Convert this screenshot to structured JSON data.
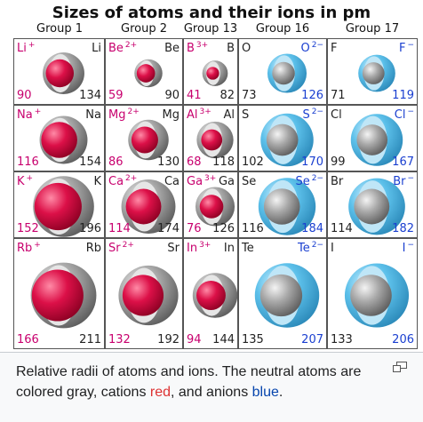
{
  "title": "Sizes of atoms and their ions in pm",
  "groups": [
    "Group 1",
    "Group 2",
    "Group 13",
    "Group 16",
    "Group 17"
  ],
  "colors": {
    "cation": "#d8144a",
    "atom": "#9a9a9a",
    "anion": "#4cb8e6",
    "cation_label": "#c8006e",
    "anion_label": "#1a3fd0"
  },
  "rows": [
    [
      {
        "ion": "Li",
        "charge": "+",
        "atom": "Li",
        "ion_r": 90,
        "atom_r": 134,
        "type": "cation"
      },
      {
        "ion": "Be",
        "charge": "2+",
        "atom": "Be",
        "ion_r": 59,
        "atom_r": 90,
        "type": "cation"
      },
      {
        "ion": "B",
        "charge": "3+",
        "atom": "B",
        "ion_r": 41,
        "atom_r": 82,
        "type": "cation"
      },
      {
        "ion": "O",
        "charge": "2−",
        "atom": "O",
        "ion_r": 126,
        "atom_r": 73,
        "type": "anion"
      },
      {
        "ion": "F",
        "charge": "−",
        "atom": "F",
        "ion_r": 119,
        "atom_r": 71,
        "type": "anion"
      }
    ],
    [
      {
        "ion": "Na",
        "charge": "+",
        "atom": "Na",
        "ion_r": 116,
        "atom_r": 154,
        "type": "cation"
      },
      {
        "ion": "Mg",
        "charge": "2+",
        "atom": "Mg",
        "ion_r": 86,
        "atom_r": 130,
        "type": "cation"
      },
      {
        "ion": "Al",
        "charge": "3+",
        "atom": "Al",
        "ion_r": 68,
        "atom_r": 118,
        "type": "cation"
      },
      {
        "ion": "S",
        "charge": "2−",
        "atom": "S",
        "ion_r": 170,
        "atom_r": 102,
        "type": "anion"
      },
      {
        "ion": "Cl",
        "charge": "−",
        "atom": "Cl",
        "ion_r": 167,
        "atom_r": 99,
        "type": "anion"
      }
    ],
    [
      {
        "ion": "K",
        "charge": "+",
        "atom": "K",
        "ion_r": 152,
        "atom_r": 196,
        "type": "cation"
      },
      {
        "ion": "Ca",
        "charge": "2+",
        "atom": "Ca",
        "ion_r": 114,
        "atom_r": 174,
        "type": "cation"
      },
      {
        "ion": "Ga",
        "charge": "3+",
        "atom": "Ga",
        "ion_r": 76,
        "atom_r": 126,
        "type": "cation"
      },
      {
        "ion": "Se",
        "charge": "2−",
        "atom": "Se",
        "ion_r": 184,
        "atom_r": 116,
        "type": "anion"
      },
      {
        "ion": "Br",
        "charge": "−",
        "atom": "Br",
        "ion_r": 182,
        "atom_r": 114,
        "type": "anion"
      }
    ],
    [
      {
        "ion": "Rb",
        "charge": "+",
        "atom": "Rb",
        "ion_r": 166,
        "atom_r": 211,
        "type": "cation"
      },
      {
        "ion": "Sr",
        "charge": "2+",
        "atom": "Sr",
        "ion_r": 132,
        "atom_r": 192,
        "type": "cation"
      },
      {
        "ion": "In",
        "charge": "3+",
        "atom": "In",
        "ion_r": 94,
        "atom_r": 144,
        "type": "cation"
      },
      {
        "ion": "Te",
        "charge": "2−",
        "atom": "Te",
        "ion_r": 207,
        "atom_r": 135,
        "type": "anion"
      },
      {
        "ion": "I",
        "charge": "−",
        "atom": "I",
        "ion_r": 206,
        "atom_r": 133,
        "type": "anion"
      }
    ]
  ],
  "caption": {
    "prefix": "Relative radii of atoms and ions. The neutral atoms are colored gray, cations ",
    "cations_word": "red",
    "middle": ", and anions ",
    "anions_word": "blue",
    "suffix": "."
  },
  "enlarge_icon": "enlarge-icon"
}
